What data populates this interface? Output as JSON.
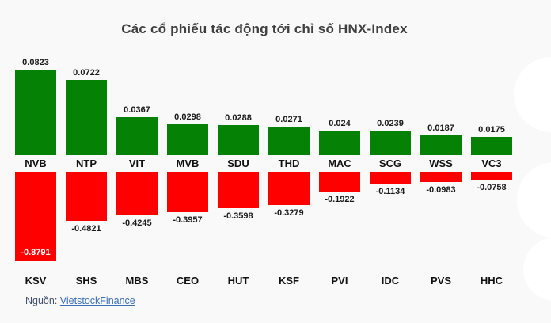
{
  "title": "Các cổ phiếu tác động tới chỉ số HNX-Index",
  "source": {
    "label": "Nguồn:",
    "link_text": "VietstockFinance"
  },
  "colors": {
    "positive": "#058205",
    "negative": "#fe0000",
    "title": "#3f3f3f",
    "link": "#3a6fb5",
    "background": "#f9f9f9"
  },
  "chart_data": {
    "type": "bar",
    "title": "Các cổ phiếu tác động tới chỉ số HNX-Index",
    "legend": "off",
    "grid": "off",
    "layout": "two-row impact chart: positive impacts on top (green), negative impacts on bottom (red)",
    "top_series": {
      "name": "positive-impact",
      "categories": [
        "NVB",
        "NTP",
        "VIT",
        "MVB",
        "SDU",
        "THD",
        "MAC",
        "SCG",
        "WSS",
        "VC3"
      ],
      "values": [
        0.0823,
        0.0722,
        0.0367,
        0.0298,
        0.0288,
        0.0271,
        0.024,
        0.0239,
        0.0187,
        0.0175
      ]
    },
    "bottom_series": {
      "name": "negative-impact",
      "categories": [
        "KSV",
        "SHS",
        "MBS",
        "CEO",
        "HUT",
        "KSF",
        "PVI",
        "IDC",
        "PVS",
        "HHC"
      ],
      "values": [
        -0.8791,
        -0.4821,
        -0.4245,
        -0.3957,
        -0.3598,
        -0.3279,
        -0.1922,
        -0.1134,
        -0.0983,
        -0.0758
      ]
    }
  }
}
